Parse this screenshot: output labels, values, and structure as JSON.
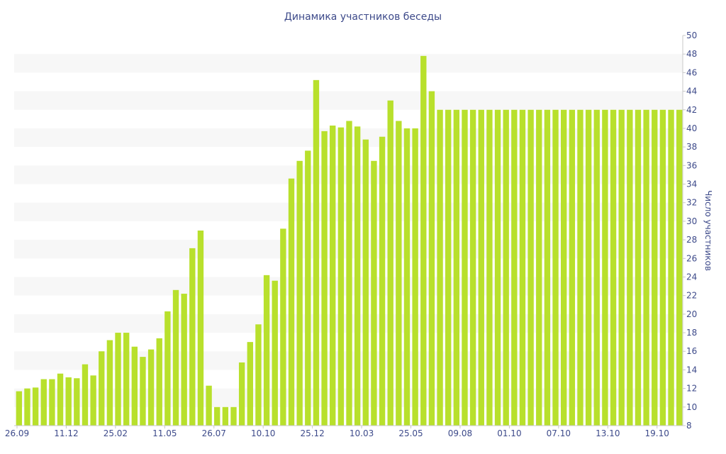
{
  "chart_data": {
    "type": "bar",
    "title": "Динамика участников беседы",
    "ylabel": "Число участников",
    "xlabel": "",
    "ylim": [
      8,
      50
    ],
    "y_ticks": [
      8,
      10,
      12,
      14,
      16,
      18,
      20,
      22,
      24,
      26,
      28,
      30,
      32,
      34,
      36,
      38,
      40,
      42,
      44,
      46,
      48,
      50
    ],
    "y_axis_side": "right",
    "grid": "alternating horizontal bands",
    "x_tick_labels": [
      "26.09",
      "11.12",
      "25.02",
      "11.05",
      "26.07",
      "10.10",
      "25.12",
      "10.03",
      "25.05",
      "09.08",
      "01.10",
      "07.10",
      "13.10",
      "19.10"
    ],
    "values": [
      11.7,
      12.0,
      12.1,
      13.0,
      13.0,
      13.6,
      13.2,
      13.1,
      14.6,
      13.4,
      16.0,
      17.2,
      18.0,
      18.0,
      16.5,
      15.4,
      16.2,
      17.4,
      20.3,
      22.6,
      22.2,
      27.1,
      29.0,
      12.3,
      10.0,
      10.0,
      10.0,
      14.8,
      17.0,
      18.9,
      24.2,
      23.6,
      29.2,
      34.6,
      36.5,
      37.6,
      45.2,
      39.7,
      40.3,
      40.1,
      40.8,
      40.2,
      38.8,
      36.5,
      39.1,
      43.0,
      40.8,
      40.0,
      40.0,
      47.8,
      44.0,
      42,
      42,
      42,
      42,
      42,
      42,
      42,
      42,
      42,
      42,
      42,
      42,
      42,
      42,
      42,
      42,
      42,
      42,
      42,
      42,
      42,
      42,
      42,
      42,
      42,
      42,
      42,
      42,
      42,
      42
    ],
    "colors": {
      "bar": "#b8e02c",
      "band": "#f7f7f7",
      "text": "#3d4a8a",
      "axis": "#c8c8c8"
    }
  }
}
